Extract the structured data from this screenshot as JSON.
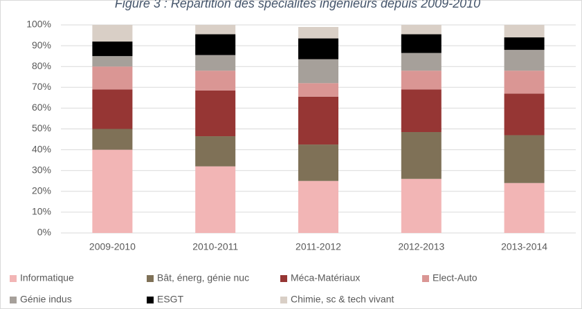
{
  "chart_data": {
    "type": "stacked_bar",
    "title": "Figure 3 : Répartition des spécialités ingénieurs depuis 2009-2010",
    "categories": [
      "2009-2010",
      "2010-2011",
      "2011-2012",
      "2012-2013",
      "2013-2014"
    ],
    "series": [
      {
        "name": "Informatique",
        "color": "#f2b5b5",
        "values": [
          40,
          32,
          25,
          26,
          24
        ]
      },
      {
        "name": "Bât, énerg, génie nuc",
        "color": "#7f7157",
        "values": [
          10,
          14.5,
          17.5,
          22.5,
          23
        ]
      },
      {
        "name": "Méca-Matériaux",
        "color": "#963634",
        "values": [
          19,
          22,
          23,
          20.5,
          20
        ]
      },
      {
        "name": "Elect-Auto",
        "color": "#da9694",
        "values": [
          11,
          9.5,
          6.5,
          9,
          11
        ]
      },
      {
        "name": "Génie indus",
        "color": "#a6a09a",
        "values": [
          5,
          7.5,
          11.5,
          8.5,
          10
        ]
      },
      {
        "name": "ESGT",
        "color": "#000000",
        "values": [
          7,
          10,
          10,
          9,
          6
        ]
      },
      {
        "name": "Chimie, sc & tech vivant",
        "color": "#d9cfc6",
        "values": [
          8,
          4.5,
          5.5,
          4.5,
          6
        ]
      }
    ],
    "ylim": [
      0,
      100
    ],
    "yticks": [
      {
        "value": 0,
        "label": "0%"
      },
      {
        "value": 10,
        "label": "10%"
      },
      {
        "value": 20,
        "label": "20%"
      },
      {
        "value": 30,
        "label": "30%"
      },
      {
        "value": 40,
        "label": "40%"
      },
      {
        "value": 50,
        "label": "50%"
      },
      {
        "value": 60,
        "label": "60%"
      },
      {
        "value": 70,
        "label": "70%"
      },
      {
        "value": 80,
        "label": "80%"
      },
      {
        "value": 90,
        "label": "90%"
      },
      {
        "value": 100,
        "label": "100%"
      }
    ],
    "grid": true,
    "legend": "bottom"
  }
}
